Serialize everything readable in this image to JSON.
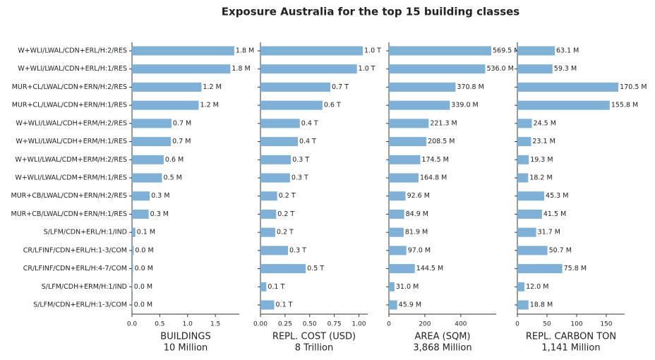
{
  "title": "Exposure Australia for the top 15 building classes",
  "chart_data": [
    {
      "type": "barh",
      "color": "#7fb0d5",
      "categories": [
        "W+WLI/LWAL/CDN+ERL/H:2/RES",
        "W+WLI/LWAL/CDN+ERL/H:1/RES",
        "MUR+CL/LWAL/CDN+ERN/H:2/RES",
        "MUR+CL/LWAL/CDN+ERN/H:1/RES",
        "W+WLI/LWAL/CDH+ERM/H:2/RES",
        "W+WLI/LWAL/CDH+ERM/H:1/RES",
        "W+WLI/LWAL/CDM+ERM/H:2/RES",
        "W+WLI/LWAL/CDM+ERM/H:1/RES",
        "MUR+CB/LWAL/CDN+ERN/H:2/RES",
        "MUR+CB/LWAL/CDN+ERN/H:1/RES",
        "S/LFM/CDN+ERL/H:1/IND",
        "CR/LFINF/CDN+ERL/H:1-3/COM",
        "CR/LFINF/CDN+ERL/H:4-7/COM",
        "S/LFM/CDH+ERM/H:1/IND",
        "S/LFM/CDN+ERL/H:1-3/COM"
      ],
      "values": [
        1.84,
        1.77,
        1.25,
        1.2,
        0.71,
        0.7,
        0.57,
        0.54,
        0.32,
        0.3,
        0.06,
        0.03,
        0.02,
        0.01,
        0.01
      ],
      "value_labels": [
        "1.8 M",
        "1.8 M",
        "1.2 M",
        "1.2 M",
        "0.7 M",
        "0.7 M",
        "0.6 M",
        "0.5 M",
        "0.3 M",
        "0.3 M",
        "0.1 M",
        "0.0 M",
        "0.0 M",
        "0.0 M",
        "0.0 M"
      ],
      "xlim": [
        0,
        1.93
      ],
      "xticks": [
        {
          "value": 0,
          "label": "0.0"
        },
        0.5,
        {
          "value": 1,
          "label": "1.0"
        },
        1.5
      ],
      "xlabel": "BUILDINGS",
      "xlabel_note": "10 Million"
    },
    {
      "type": "barh",
      "color": "#7fb0d5",
      "values": [
        1.04,
        0.98,
        0.71,
        0.63,
        0.4,
        0.38,
        0.31,
        0.3,
        0.17,
        0.16,
        0.15,
        0.28,
        0.46,
        0.06,
        0.14
      ],
      "value_labels": [
        "1.0 T",
        "1.0 T",
        "0.7 T",
        "0.6 T",
        "0.4 T",
        "0.4 T",
        "0.3 T",
        "0.3 T",
        "0.2 T",
        "0.2 T",
        "0.2 T",
        "0.3 T",
        "0.5 T",
        "0.1 T",
        "0.1 T"
      ],
      "xlim": [
        0,
        1.09
      ],
      "xticks": [
        {
          "value": 0,
          "label": "0.00"
        },
        0.25,
        {
          "value": 0.5,
          "label": "0.50"
        },
        0.75,
        {
          "value": 1,
          "label": "1.00"
        }
      ],
      "xlabel": "REPL. COST (USD)",
      "xlabel_note": "8 Trillion"
    },
    {
      "type": "barh",
      "color": "#7fb0d5",
      "values": [
        569.5,
        536.0,
        370.8,
        339.0,
        221.3,
        208.5,
        174.5,
        164.8,
        92.6,
        84.9,
        81.9,
        97.0,
        144.5,
        31.0,
        45.9
      ],
      "value_labels": [
        "569.5 M",
        "536.0 M",
        "370.8 M",
        "339.0 M",
        "221.3 M",
        "208.5 M",
        "174.5 M",
        "164.8 M",
        "92.6 M",
        "84.9 M",
        "81.9 M",
        "97.0 M",
        "144.5 M",
        "31.0 M",
        "45.9 M"
      ],
      "xlim": [
        0,
        597
      ],
      "xticks": [
        0,
        200,
        400
      ],
      "xlabel": "AREA (SQM)",
      "xlabel_note": "3,868 Million"
    },
    {
      "type": "barh",
      "color": "#7fb0d5",
      "values": [
        63.1,
        59.3,
        170.5,
        155.8,
        24.5,
        23.1,
        19.3,
        18.2,
        45.3,
        41.5,
        31.7,
        50.7,
        75.8,
        12.0,
        18.8
      ],
      "value_labels": [
        "63.1 M",
        "59.3 M",
        "170.5 M",
        "155.8 M",
        "24.5 M",
        "23.1 M",
        "19.3 M",
        "18.2 M",
        "45.3 M",
        "41.5 M",
        "31.7 M",
        "50.7 M",
        "75.8 M",
        "12.0 M",
        "18.8 M"
      ],
      "xlim": [
        0,
        181
      ],
      "xticks": [
        0,
        50,
        100,
        150
      ],
      "xlabel": "REPL. CARBON TON",
      "xlabel_note": "1,141 Million"
    }
  ]
}
